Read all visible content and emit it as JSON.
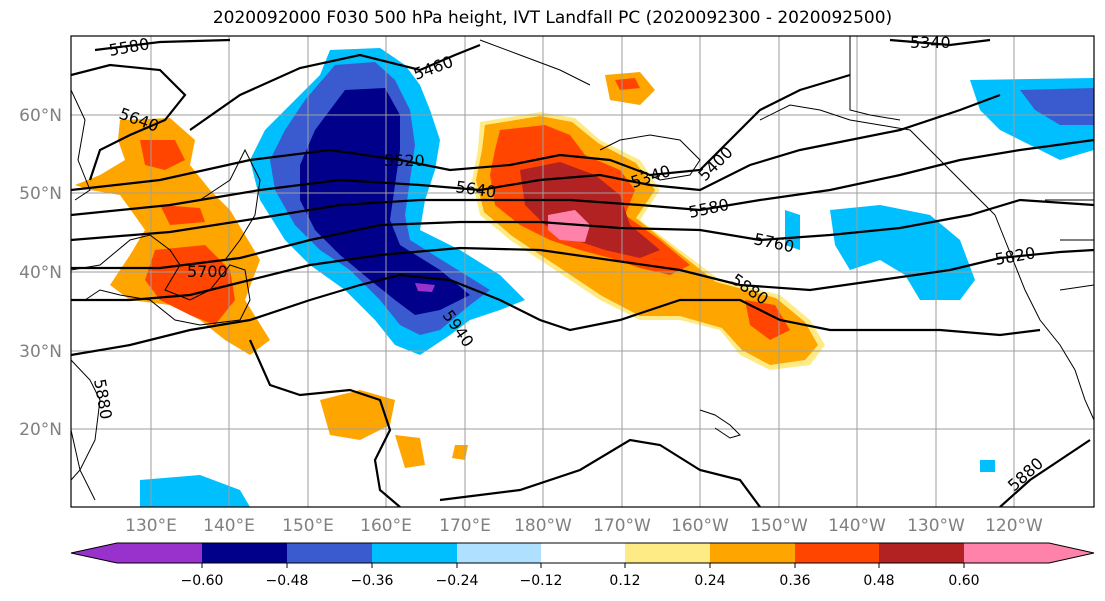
{
  "title": "2020092000 F030 500 hPa height, IVT Landfall PC (2020092300 - 2020092500)",
  "map": {
    "lat_labels": [
      "60°N",
      "50°N",
      "40°N",
      "30°N",
      "20°N"
    ],
    "lon_labels": [
      "130°E",
      "140°E",
      "150°E",
      "160°E",
      "170°E",
      "180°W",
      "170°W",
      "160°W",
      "150°W",
      "140°W",
      "130°W",
      "120°W"
    ],
    "contour_labels": [
      "5580",
      "5640",
      "5460",
      "5520",
      "5640",
      "5340",
      "5400",
      "5580",
      "5760",
      "5700",
      "5880",
      "5940",
      "5820",
      "5880",
      "5880",
      "5340"
    ]
  },
  "colorbar": {
    "colors": [
      "#9932cc",
      "#00008b",
      "#3a5bcf",
      "#00bfff",
      "#b0e0ff",
      "#ffffff",
      "#ffeb85",
      "#ffa500",
      "#ff4500",
      "#b22222",
      "#ff82ab"
    ],
    "ticks": [
      "−0.60",
      "−0.48",
      "−0.36",
      "−0.24",
      "−0.12",
      "0.12",
      "0.24",
      "0.36",
      "0.48",
      "0.60"
    ]
  }
}
